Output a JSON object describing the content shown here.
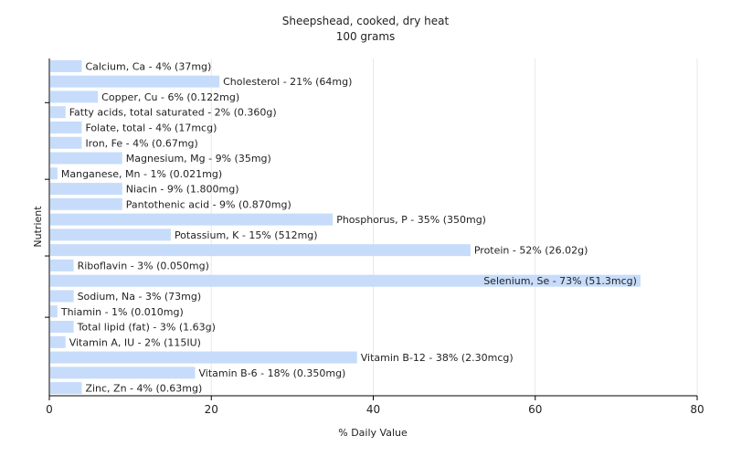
{
  "chart_data": {
    "type": "bar",
    "orientation": "horizontal",
    "title": "Sheepshead, cooked, dry heat",
    "subtitle": "100 grams",
    "xlabel": "% Daily Value",
    "ylabel": "Nutrient",
    "xlim": [
      0,
      80
    ],
    "xticks": [
      "0",
      "20",
      "40",
      "60",
      "80"
    ],
    "grid": true,
    "legend": "none",
    "bar_color": "#c6dcfa",
    "categories": [
      "Calcium, Ca",
      "Cholesterol",
      "Copper, Cu",
      "Fatty acids, total saturated",
      "Folate, total",
      "Iron, Fe",
      "Magnesium, Mg",
      "Manganese, Mn",
      "Niacin",
      "Pantothenic acid",
      "Phosphorus, P",
      "Potassium, K",
      "Protein",
      "Riboflavin",
      "Selenium, Se",
      "Sodium, Na",
      "Thiamin",
      "Total lipid (fat)",
      "Vitamin A, IU",
      "Vitamin B-12",
      "Vitamin B-6",
      "Zinc, Zn"
    ],
    "values": [
      4,
      21,
      6,
      2,
      4,
      4,
      9,
      1,
      9,
      9,
      35,
      15,
      52,
      3,
      73,
      3,
      1,
      3,
      2,
      38,
      18,
      4
    ],
    "labels": [
      "Calcium, Ca - 4% (37mg)",
      "Cholesterol - 21% (64mg)",
      "Copper, Cu - 6% (0.122mg)",
      "Fatty acids, total saturated - 2% (0.360g)",
      "Folate, total - 4% (17mcg)",
      "Iron, Fe - 4% (0.67mg)",
      "Magnesium, Mg - 9% (35mg)",
      "Manganese, Mn - 1% (0.021mg)",
      "Niacin - 9% (1.800mg)",
      "Pantothenic acid - 9% (0.870mg)",
      "Phosphorus, P - 35% (350mg)",
      "Potassium, K - 15% (512mg)",
      "Protein - 52% (26.02g)",
      "Riboflavin - 3% (0.050mg)",
      "Selenium, Se - 73% (51.3mcg)",
      "Sodium, Na - 3% (73mg)",
      "Thiamin - 1% (0.010mg)",
      "Total lipid (fat) - 3% (1.63g)",
      "Vitamin A, IU - 2% (115IU)",
      "Vitamin B-12 - 38% (2.30mcg)",
      "Vitamin B-6 - 18% (0.350mg)",
      "Zinc, Zn - 4% (0.63mg)"
    ]
  }
}
